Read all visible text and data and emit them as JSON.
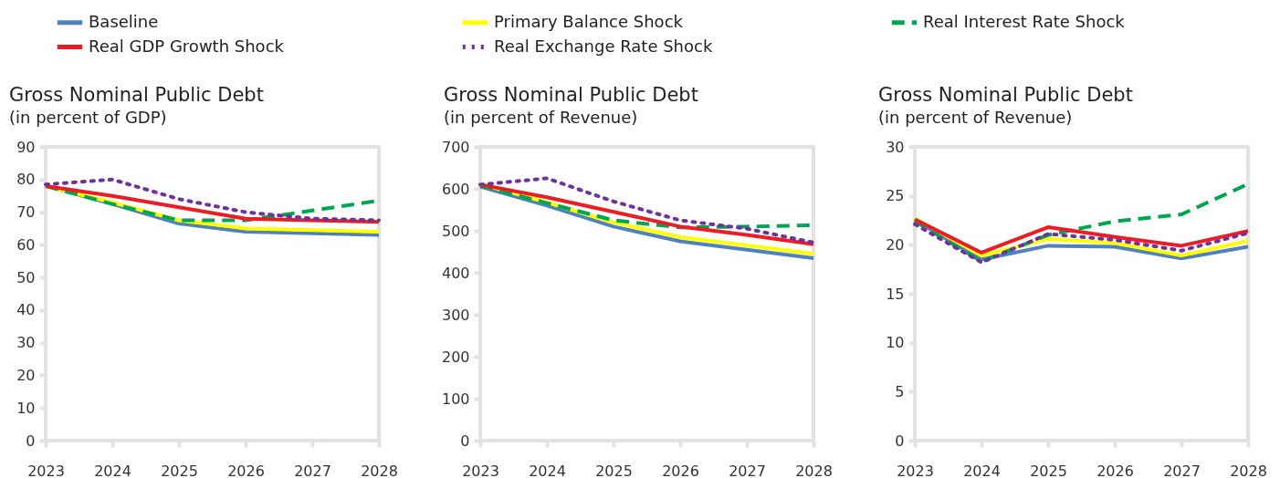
{
  "chart_data": [
    {
      "type": "line",
      "title": "Gross Nominal Public Debt",
      "subtitle": "(in percent of GDP)",
      "categories": [
        "2023",
        "2024",
        "2025",
        "2026",
        "2027",
        "2028"
      ],
      "ylim": [
        0,
        90
      ],
      "yticks": [
        0,
        10,
        20,
        30,
        40,
        50,
        60,
        70,
        80,
        90
      ],
      "grid": false,
      "legend": "top",
      "series": [
        {
          "name": "Baseline",
          "color": "#4f81bd",
          "line_style": "solid",
          "values": [
            78,
            72.5,
            66.5,
            64,
            63.5,
            63
          ]
        },
        {
          "name": "Primary Balance Shock",
          "color": "#ffff00",
          "line_style": "solid",
          "values": [
            78,
            73,
            67.5,
            65,
            64.5,
            64
          ]
        },
        {
          "name": "Real Interest Rate Shock",
          "color": "#00a650",
          "line_style": "dashed",
          "values": [
            78,
            72.5,
            67.5,
            67.5,
            70.5,
            73.5
          ]
        },
        {
          "name": "Real GDP Growth Shock",
          "color": "#ed1c24",
          "line_style": "solid",
          "values": [
            78,
            75,
            71.5,
            68,
            67.5,
            67
          ]
        },
        {
          "name": "Real Exchange Rate Shock",
          "color": "#7030a0",
          "line_style": "dotted",
          "values": [
            78.5,
            80,
            74,
            70,
            68,
            67.5
          ]
        }
      ]
    },
    {
      "type": "line",
      "title": "Gross Nominal Public Debt",
      "subtitle": "(in percent of Revenue)",
      "categories": [
        "2023",
        "2024",
        "2025",
        "2026",
        "2027",
        "2028"
      ],
      "ylim": [
        0,
        700
      ],
      "yticks": [
        0,
        100,
        200,
        300,
        400,
        500,
        600,
        700
      ],
      "grid": false,
      "series": [
        {
          "color": "#4f81bd",
          "line_style": "solid",
          "values": [
            605,
            560,
            510,
            475,
            455,
            435
          ]
        },
        {
          "color": "#ffff00",
          "line_style": "solid",
          "values": [
            612,
            568,
            520,
            485,
            465,
            445
          ]
        },
        {
          "color": "#00a650",
          "line_style": "dashed",
          "values": [
            607,
            566,
            525,
            508,
            510,
            513
          ]
        },
        {
          "color": "#ed1c24",
          "line_style": "solid",
          "values": [
            610,
            580,
            545,
            510,
            490,
            468
          ]
        },
        {
          "color": "#7030a0",
          "line_style": "dotted",
          "values": [
            610,
            625,
            570,
            525,
            505,
            472
          ]
        }
      ]
    },
    {
      "type": "line",
      "title": "Gross Nominal Public Debt",
      "subtitle": "(in percent of Revenue)",
      "categories": [
        "2023",
        "2024",
        "2025",
        "2026",
        "2027",
        "2028"
      ],
      "ylim": [
        0,
        30
      ],
      "yticks": [
        0,
        5,
        10,
        15,
        20,
        25,
        30
      ],
      "grid": false,
      "series": [
        {
          "color": "#4f81bd",
          "line_style": "solid",
          "values": [
            22.5,
            18.5,
            19.9,
            19.8,
            18.6,
            19.8
          ]
        },
        {
          "color": "#ffff00",
          "line_style": "solid",
          "values": [
            22.7,
            18.9,
            20.6,
            20.2,
            18.9,
            20.4
          ]
        },
        {
          "color": "#00a650",
          "line_style": "dashed",
          "values": [
            22.4,
            18.3,
            21.0,
            22.4,
            23.1,
            26.2
          ]
        },
        {
          "color": "#ed1c24",
          "line_style": "solid",
          "values": [
            22.6,
            19.2,
            21.8,
            20.8,
            19.9,
            21.4
          ]
        },
        {
          "color": "#7030a0",
          "line_style": "dotted",
          "values": [
            22.1,
            18.2,
            21.1,
            20.5,
            19.4,
            21.2
          ]
        }
      ]
    }
  ]
}
